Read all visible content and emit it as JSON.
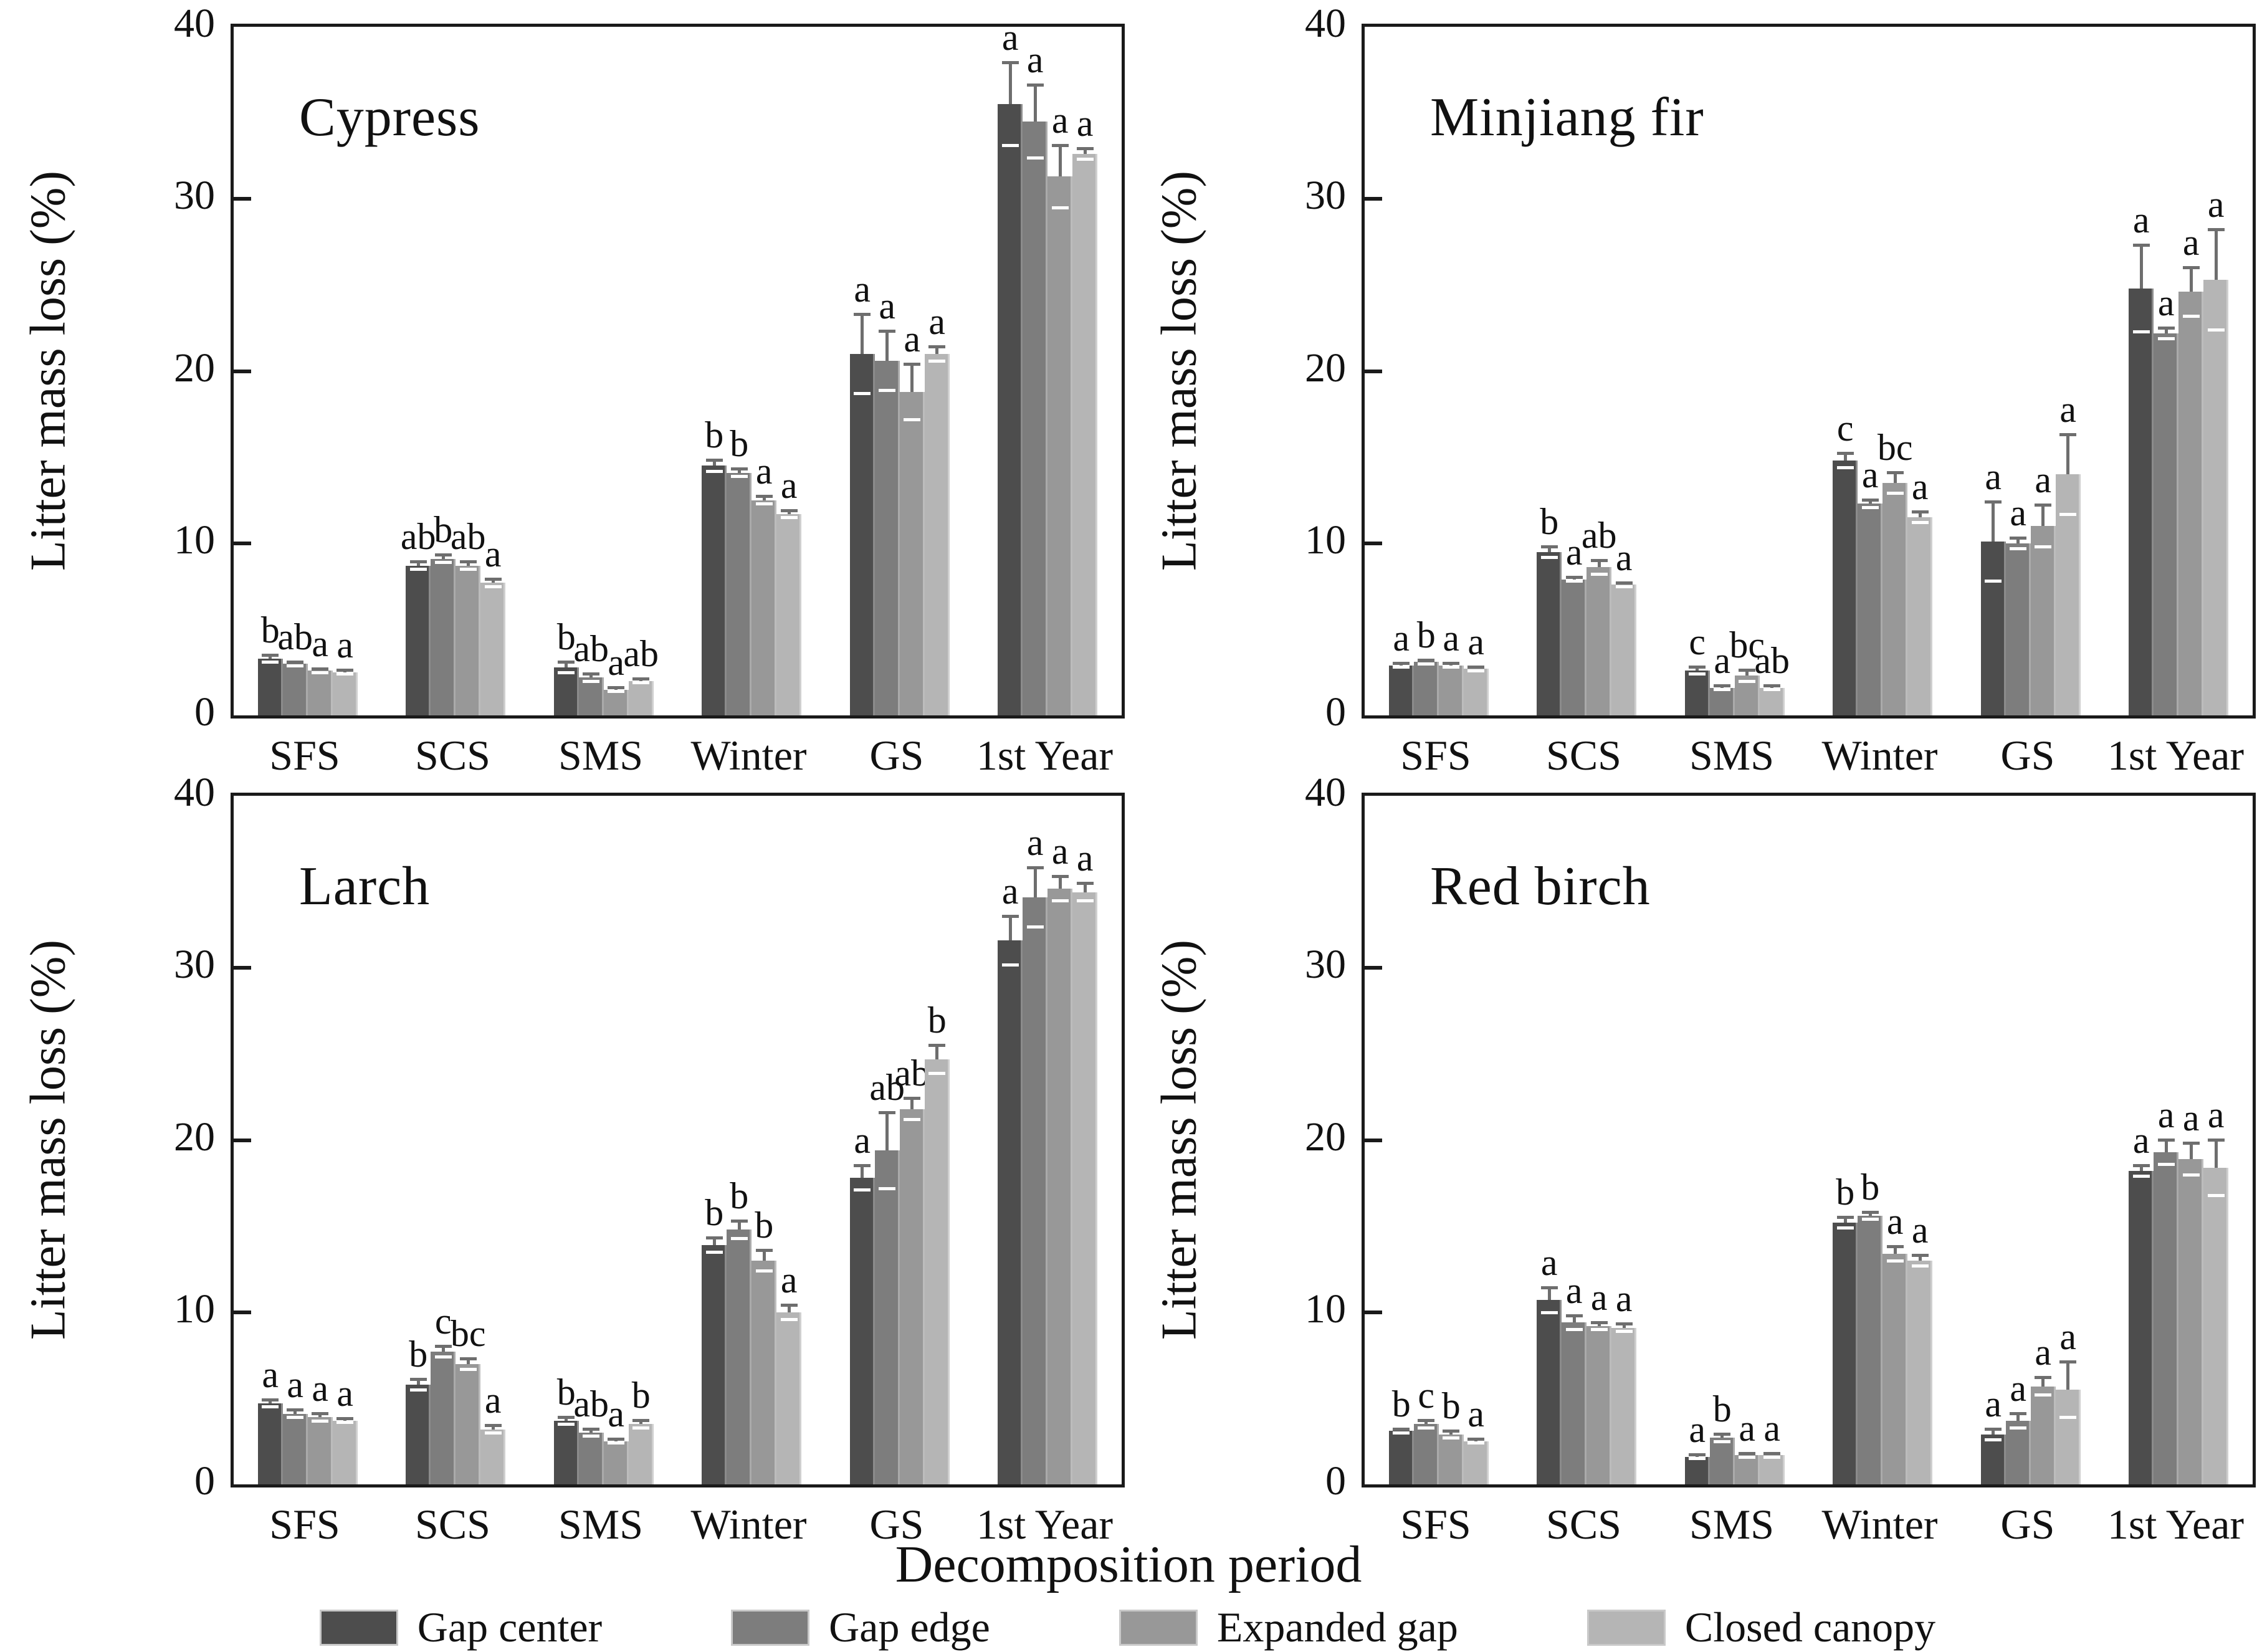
{
  "chart_data": {
    "type": "bar",
    "xlabel": "Decomposition period",
    "ylabel": "Litter mass loss (%)",
    "ylim": [
      0,
      40
    ],
    "y_ticks": [
      0,
      10,
      20,
      30,
      40
    ],
    "grid": false,
    "legend_position": "bottom",
    "categories": [
      "SFS",
      "SCS",
      "SMS",
      "Winter",
      "GS",
      "1st Year"
    ],
    "series_names": [
      "Gap center",
      "Gap edge",
      "Expanded gap",
      "Closed canopy"
    ],
    "series_colors": [
      "#4d4d4d",
      "#7d7d7d",
      "#989898",
      "#b5b5b5"
    ],
    "error_bar_color": "#6e6e6e",
    "panels": [
      {
        "title": "Cypress",
        "groups": [
          {
            "category": "SFS",
            "values": [
              3.3,
              3.0,
              2.6,
              2.5
            ],
            "errors": [
              0.3,
              0.2,
              0.2,
              0.2
            ],
            "letters": [
              "b",
              "ab",
              "a",
              "a"
            ]
          },
          {
            "category": "SCS",
            "values": [
              8.7,
              9.1,
              8.7,
              7.7
            ],
            "errors": [
              0.3,
              0.3,
              0.3,
              0.3
            ],
            "letters": [
              "ab",
              "b",
              "ab",
              "a"
            ]
          },
          {
            "category": "SMS",
            "values": [
              2.8,
              2.2,
              1.5,
              2.0
            ],
            "errors": [
              0.4,
              0.3,
              0.2,
              0.2
            ],
            "letters": [
              "b",
              "ab",
              "a",
              "ab"
            ]
          },
          {
            "category": "Winter",
            "values": [
              14.5,
              14.1,
              12.5,
              11.7
            ],
            "errors": [
              0.4,
              0.3,
              0.3,
              0.3
            ],
            "letters": [
              "b",
              "b",
              "a",
              "a"
            ]
          },
          {
            "category": "GS",
            "values": [
              21.0,
              20.6,
              18.8,
              21.0
            ],
            "errors": [
              2.4,
              1.8,
              1.7,
              0.5
            ],
            "letters": [
              "a",
              "a",
              "a",
              "a"
            ]
          },
          {
            "category": "1st Year",
            "values": [
              35.5,
              34.5,
              31.3,
              32.6
            ],
            "errors": [
              2.5,
              2.2,
              1.9,
              0.4
            ],
            "letters": [
              "a",
              "a",
              "a",
              "a"
            ]
          }
        ]
      },
      {
        "title": "Minjiang fir",
        "groups": [
          {
            "category": "SFS",
            "values": [
              2.9,
              3.1,
              2.9,
              2.7
            ],
            "errors": [
              0.2,
              0.2,
              0.2,
              0.2
            ],
            "letters": [
              "a",
              "b",
              "a",
              "a"
            ]
          },
          {
            "category": "SCS",
            "values": [
              9.5,
              7.9,
              8.6,
              7.6
            ],
            "errors": [
              0.4,
              0.2,
              0.5,
              0.2
            ],
            "letters": [
              "b",
              "a",
              "ab",
              "a"
            ]
          },
          {
            "category": "SMS",
            "values": [
              2.6,
              1.6,
              2.3,
              1.6
            ],
            "errors": [
              0.3,
              0.2,
              0.4,
              0.2
            ],
            "letters": [
              "c",
              "a",
              "bc",
              "ab"
            ]
          },
          {
            "category": "Winter",
            "values": [
              14.8,
              12.3,
              13.5,
              11.5
            ],
            "errors": [
              0.5,
              0.3,
              0.7,
              0.4
            ],
            "letters": [
              "c",
              "a",
              "bc",
              "a"
            ]
          },
          {
            "category": "GS",
            "values": [
              10.1,
              10.0,
              11.0,
              14.0
            ],
            "errors": [
              2.4,
              0.4,
              1.3,
              2.4
            ],
            "letters": [
              "a",
              "a",
              "a",
              "a"
            ]
          },
          {
            "category": "1st Year",
            "values": [
              24.8,
              22.2,
              24.6,
              25.3
            ],
            "errors": [
              2.6,
              0.4,
              1.5,
              3.0
            ],
            "letters": [
              "a",
              "a",
              "a",
              "a"
            ]
          }
        ]
      },
      {
        "title": "Larch",
        "groups": [
          {
            "category": "SFS",
            "values": [
              4.7,
              4.1,
              3.9,
              3.7
            ],
            "errors": [
              0.3,
              0.3,
              0.3,
              0.2
            ],
            "letters": [
              "a",
              "a",
              "a",
              "a"
            ]
          },
          {
            "category": "SCS",
            "values": [
              5.8,
              7.7,
              7.0,
              3.2
            ],
            "errors": [
              0.4,
              0.4,
              0.4,
              0.3
            ],
            "letters": [
              "b",
              "c",
              "bc",
              "a"
            ]
          },
          {
            "category": "SMS",
            "values": [
              3.7,
              3.0,
              2.5,
              3.5
            ],
            "errors": [
              0.3,
              0.3,
              0.2,
              0.3
            ],
            "letters": [
              "b",
              "ab",
              "a",
              "b"
            ]
          },
          {
            "category": "Winter",
            "values": [
              13.9,
              14.8,
              13.0,
              10.0
            ],
            "errors": [
              0.5,
              0.6,
              0.7,
              0.5
            ],
            "letters": [
              "b",
              "b",
              "b",
              "a"
            ]
          },
          {
            "category": "GS",
            "values": [
              17.8,
              19.4,
              21.8,
              24.7
            ],
            "errors": [
              0.8,
              2.3,
              0.7,
              0.9
            ],
            "letters": [
              "a",
              "ab",
              "ab",
              "b"
            ]
          },
          {
            "category": "1st Year",
            "values": [
              31.6,
              34.1,
              34.6,
              34.4
            ],
            "errors": [
              1.5,
              1.8,
              0.8,
              0.6
            ],
            "letters": [
              "a",
              "a",
              "a",
              "a"
            ]
          }
        ]
      },
      {
        "title": "Red birch",
        "groups": [
          {
            "category": "SFS",
            "values": [
              3.1,
              3.5,
              2.9,
              2.5
            ],
            "errors": [
              0.2,
              0.3,
              0.3,
              0.2
            ],
            "letters": [
              "b",
              "c",
              "b",
              "a"
            ]
          },
          {
            "category": "SCS",
            "values": [
              10.7,
              9.4,
              9.2,
              9.1
            ],
            "errors": [
              0.8,
              0.5,
              0.3,
              0.3
            ],
            "letters": [
              "a",
              "a",
              "a",
              "a"
            ]
          },
          {
            "category": "SMS",
            "values": [
              1.6,
              2.7,
              1.7,
              1.7
            ],
            "errors": [
              0.2,
              0.3,
              0.2,
              0.2
            ],
            "letters": [
              "a",
              "b",
              "a",
              "a"
            ]
          },
          {
            "category": "Winter",
            "values": [
              15.2,
              15.6,
              13.4,
              13.0
            ],
            "errors": [
              0.4,
              0.3,
              0.5,
              0.4
            ],
            "letters": [
              "b",
              "b",
              "a",
              "a"
            ]
          },
          {
            "category": "GS",
            "values": [
              2.9,
              3.7,
              5.7,
              5.5
            ],
            "errors": [
              0.4,
              0.5,
              0.6,
              1.7
            ],
            "letters": [
              "a",
              "a",
              "a",
              "a"
            ]
          },
          {
            "category": "1st Year",
            "values": [
              18.2,
              19.3,
              18.9,
              18.4
            ],
            "errors": [
              0.4,
              0.8,
              1.0,
              1.7
            ],
            "letters": [
              "a",
              "a",
              "a",
              "a"
            ]
          }
        ]
      }
    ],
    "legend": [
      {
        "label": "Gap center",
        "color": "#4d4d4d"
      },
      {
        "label": "Gap edge",
        "color": "#7d7d7d"
      },
      {
        "label": "Expanded gap",
        "color": "#989898"
      },
      {
        "label": "Closed canopy",
        "color": "#b5b5b5"
      }
    ]
  }
}
